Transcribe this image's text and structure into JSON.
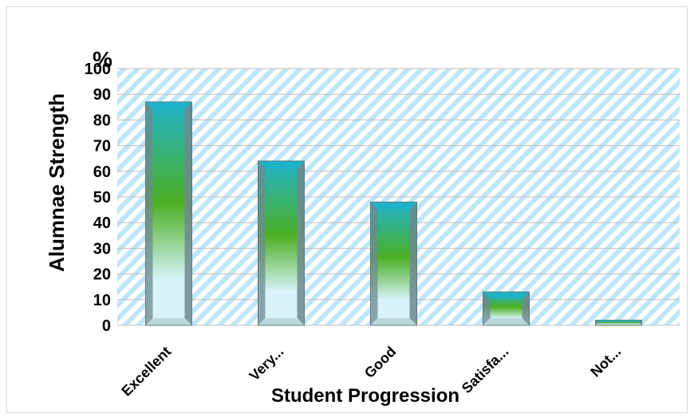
{
  "chart_data": {
    "type": "bar",
    "title": "",
    "xlabel": "Student Progression",
    "ylabel": "Alumnae Strength",
    "y_unit": "%",
    "ylim": [
      0,
      100
    ],
    "yticks": [
      0,
      10,
      20,
      30,
      40,
      50,
      60,
      70,
      80,
      90,
      100
    ],
    "categories": [
      "Excellent",
      "Very...",
      "Good",
      "Satisfa...",
      "Not..."
    ],
    "values": [
      87,
      64,
      48,
      13,
      2
    ],
    "grid": true,
    "legend": "none",
    "colors": {
      "plot_stripe": "#bfe6f7",
      "gridline": "#bfbfbf",
      "bar_top": "#1fb3c9",
      "bar_mid": "#4caf23",
      "bar_light": "#d8f4fb",
      "bevel_dark": "#6e8a90",
      "bevel_light": "#b7d4da"
    }
  }
}
